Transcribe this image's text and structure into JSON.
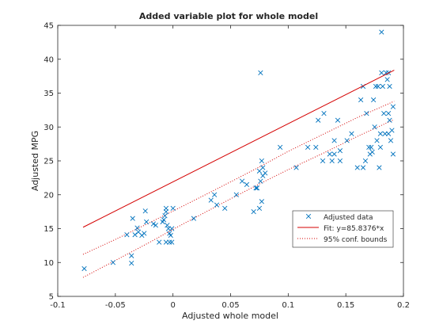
{
  "colors": {
    "data": "#0072BD",
    "fit": "#D40000",
    "axes": "#262626"
  },
  "chart_data": {
    "type": "scatter",
    "title": "Added variable plot for whole model",
    "xlabel": "Adjusted whole model",
    "ylabel": "Adjusted MPG",
    "xlim": [
      -0.1,
      0.2
    ],
    "ylim": [
      5,
      45
    ],
    "xticks": [
      -0.1,
      -0.05,
      0,
      0.05,
      0.1,
      0.15,
      0.2
    ],
    "xtick_labels": [
      "-0.1",
      "-0.05",
      "0",
      "0.05",
      "0.1",
      "0.15",
      "0.2"
    ],
    "yticks": [
      5,
      10,
      15,
      20,
      25,
      30,
      35,
      40,
      45
    ],
    "ytick_labels": [
      "5",
      "10",
      "15",
      "20",
      "25",
      "30",
      "35",
      "40",
      "45"
    ],
    "grid": false,
    "legend_position": "bottom-right",
    "legend": [
      "Adjusted data",
      "Fit: y=85.8376*x",
      "95% conf. bounds"
    ],
    "fit": {
      "slope": 85.8376,
      "intercept": 21.9,
      "x_range": [
        -0.078,
        0.192
      ]
    },
    "conf_bounds": {
      "x": [
        -0.078,
        -0.05,
        -0.02,
        0.0,
        0.02,
        0.05,
        0.075,
        0.1,
        0.13,
        0.16,
        0.192
      ],
      "upper": [
        11.2,
        13.4,
        15.9,
        17.6,
        19.3,
        21.9,
        24.1,
        26.4,
        28.9,
        31.4,
        33.8
      ],
      "lower": [
        7.8,
        10.3,
        13.0,
        14.9,
        16.7,
        19.4,
        21.6,
        23.7,
        26.1,
        28.6,
        31.1
      ]
    },
    "series": [
      {
        "name": "Adjusted data",
        "points": [
          [
            -0.077,
            9.1
          ],
          [
            -0.052,
            10.0
          ],
          [
            -0.036,
            9.9
          ],
          [
            -0.036,
            11.0
          ],
          [
            -0.035,
            16.5
          ],
          [
            -0.04,
            14.1
          ],
          [
            -0.033,
            14.1
          ],
          [
            -0.031,
            15.1
          ],
          [
            -0.03,
            14.5
          ],
          [
            -0.027,
            14.0
          ],
          [
            -0.025,
            14.3
          ],
          [
            -0.024,
            17.6
          ],
          [
            -0.023,
            16.0
          ],
          [
            -0.017,
            15.7
          ],
          [
            -0.015,
            15.5
          ],
          [
            -0.012,
            13.0
          ],
          [
            -0.009,
            16.0
          ],
          [
            -0.008,
            16.3
          ],
          [
            -0.007,
            16.9
          ],
          [
            -0.006,
            17.5
          ],
          [
            -0.006,
            18.0
          ],
          [
            -0.005,
            15.5
          ],
          [
            -0.004,
            15.0
          ],
          [
            -0.003,
            14.3
          ],
          [
            -0.003,
            13.0
          ],
          [
            -0.002,
            14.0
          ],
          [
            -0.001,
            15.0
          ],
          [
            0.0,
            18.0
          ],
          [
            -0.006,
            13.0
          ],
          [
            -0.001,
            13.0
          ],
          [
            0.018,
            16.5
          ],
          [
            0.033,
            19.2
          ],
          [
            0.036,
            20.0
          ],
          [
            0.038,
            18.5
          ],
          [
            0.045,
            18.0
          ],
          [
            0.055,
            20.0
          ],
          [
            0.06,
            22.0
          ],
          [
            0.064,
            21.5
          ],
          [
            0.07,
            17.5
          ],
          [
            0.072,
            21.0
          ],
          [
            0.073,
            21.0
          ],
          [
            0.075,
            18.0
          ],
          [
            0.076,
            38.0
          ],
          [
            0.075,
            23.5
          ],
          [
            0.076,
            22.0
          ],
          [
            0.077,
            25.0
          ],
          [
            0.077,
            19.0
          ],
          [
            0.078,
            24.0
          ],
          [
            0.078,
            22.8
          ],
          [
            0.08,
            23.2
          ],
          [
            0.093,
            27.0
          ],
          [
            0.107,
            24.0
          ],
          [
            0.117,
            27.0
          ],
          [
            0.124,
            27.0
          ],
          [
            0.126,
            31.0
          ],
          [
            0.13,
            25.0
          ],
          [
            0.131,
            32.0
          ],
          [
            0.136,
            26.0
          ],
          [
            0.138,
            25.0
          ],
          [
            0.14,
            28.0
          ],
          [
            0.14,
            26.0
          ],
          [
            0.143,
            31.0
          ],
          [
            0.145,
            26.5
          ],
          [
            0.145,
            25.0
          ],
          [
            0.151,
            28.0
          ],
          [
            0.155,
            29.0
          ],
          [
            0.16,
            24.0
          ],
          [
            0.163,
            34.0
          ],
          [
            0.165,
            36.0
          ],
          [
            0.165,
            24.0
          ],
          [
            0.167,
            25.0
          ],
          [
            0.168,
            32.0
          ],
          [
            0.17,
            27.0
          ],
          [
            0.171,
            26.0
          ],
          [
            0.172,
            27.0
          ],
          [
            0.173,
            26.3
          ],
          [
            0.174,
            34.0
          ],
          [
            0.175,
            30.0
          ],
          [
            0.176,
            36.0
          ],
          [
            0.177,
            28.0
          ],
          [
            0.178,
            36.0
          ],
          [
            0.179,
            24.0
          ],
          [
            0.18,
            27.0
          ],
          [
            0.181,
            38.0
          ],
          [
            0.181,
            44.0
          ],
          [
            0.182,
            36.0
          ],
          [
            0.183,
            32.0
          ],
          [
            0.184,
            29.0
          ],
          [
            0.185,
            38.0
          ],
          [
            0.186,
            37.0
          ],
          [
            0.187,
            32.0
          ],
          [
            0.187,
            38.0
          ],
          [
            0.187,
            29.0
          ],
          [
            0.188,
            31.0
          ],
          [
            0.188,
            36.0
          ],
          [
            0.189,
            28.0
          ],
          [
            0.19,
            29.5
          ],
          [
            0.191,
            33.0
          ],
          [
            0.191,
            26.0
          ],
          [
            0.18,
            29.0
          ]
        ]
      }
    ]
  }
}
